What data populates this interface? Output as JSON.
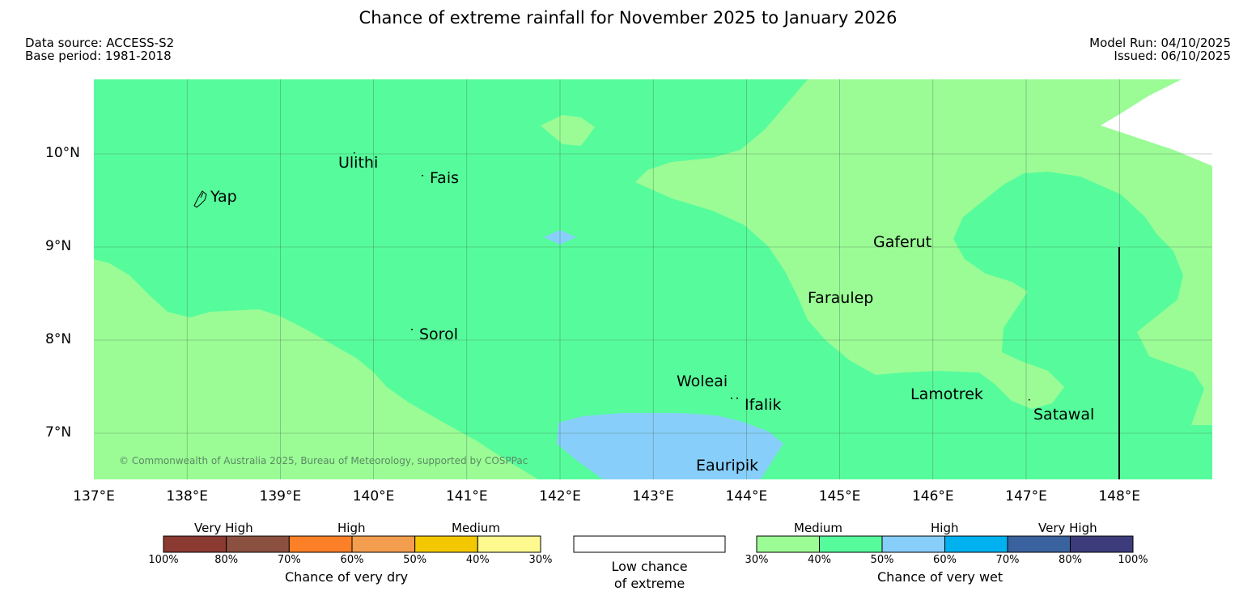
{
  "title": "Chance of extreme rainfall for November 2025 to January 2026",
  "meta": {
    "data_source": "Data source: ACCESS-S2",
    "base_period": "Base period: 1981-2018",
    "model_run": "Model Run: 04/10/2025",
    "issued": "Issued: 06/10/2025"
  },
  "copyright": "© Commonwealth of Australia 2025, Bureau of Meteorology, supported by COSPPac",
  "map": {
    "lon_range": [
      137,
      149
    ],
    "lat_range": [
      6.5,
      10.8
    ],
    "lon_ticks": [
      "137°E",
      "138°E",
      "139°E",
      "140°E",
      "141°E",
      "142°E",
      "143°E",
      "144°E",
      "145°E",
      "146°E",
      "147°E",
      "148°E"
    ],
    "lat_ticks": [
      "10°N",
      "9°N",
      "8°N",
      "7°N"
    ],
    "colors": {
      "medium_wet": "#9bfc95",
      "medium_wet_2": "#56fc9c",
      "high_wet": "#87cefa",
      "land_outline": "#000000",
      "grid": "#4a6b52"
    },
    "places": [
      {
        "name": "Yap",
        "lon": 138.1,
        "lat": 9.5
      },
      {
        "name": "Ulithi",
        "lon": 139.8,
        "lat": 9.95
      },
      {
        "name": "Fais",
        "lon": 140.5,
        "lat": 9.75
      },
      {
        "name": "Sorol",
        "lon": 140.4,
        "lat": 8.05
      },
      {
        "name": "Gaferut",
        "lon": 145.5,
        "lat": 9.0
      },
      {
        "name": "Faraulep",
        "lon": 145.0,
        "lat": 8.4
      },
      {
        "name": "Woleai",
        "lon": 143.5,
        "lat": 7.55
      },
      {
        "name": "Ifalik",
        "lon": 144.3,
        "lat": 7.3
      },
      {
        "name": "Lamotrek",
        "lon": 146.2,
        "lat": 7.4
      },
      {
        "name": "Satawal",
        "lon": 147.4,
        "lat": 7.15
      },
      {
        "name": "Eauripik",
        "lon": 143.8,
        "lat": 6.6
      }
    ]
  },
  "legend": {
    "dry": {
      "label": "Chance of very dry",
      "groups": [
        "Very High",
        "High",
        "Medium"
      ],
      "pcts": [
        "100%",
        "80%",
        "70%",
        "60%",
        "50%",
        "40%",
        "30%"
      ],
      "colors": [
        "#8b3a32",
        "#8c5040",
        "#fc8028",
        "#f39d4e",
        "#f3c800",
        "#fdf98e"
      ]
    },
    "low": {
      "label_line1": "Low chance",
      "label_line2": "of extreme"
    },
    "wet": {
      "label": "Chance of very wet",
      "groups": [
        "Medium",
        "High",
        "Very High"
      ],
      "pcts": [
        "30%",
        "40%",
        "50%",
        "60%",
        "70%",
        "80%",
        "100%"
      ],
      "colors": [
        "#9bfc95",
        "#56fc9c",
        "#87cefa",
        "#00b1f0",
        "#3a629e",
        "#3c3c7c"
      ]
    }
  }
}
